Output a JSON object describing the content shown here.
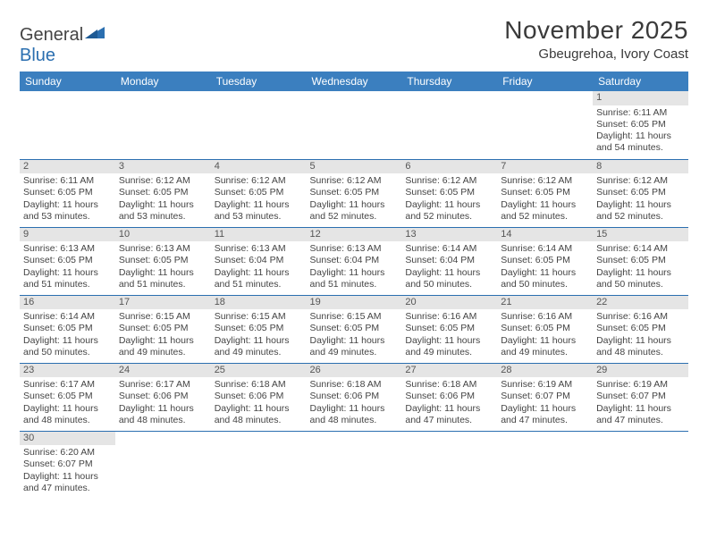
{
  "logo": {
    "word1": "General",
    "word2": "Blue"
  },
  "title": {
    "month": "November 2025",
    "location": "Gbeugrehoa, Ivory Coast"
  },
  "colors": {
    "header_bg": "#3b7fbf",
    "header_fg": "#ffffff",
    "rule": "#2b6fb0",
    "daynum_bg": "#e5e5e5",
    "text": "#444444",
    "logo_blue": "#2b6fb0"
  },
  "table": {
    "columns": [
      "Sunday",
      "Monday",
      "Tuesday",
      "Wednesday",
      "Thursday",
      "Friday",
      "Saturday"
    ],
    "col_width_pct": 14.28,
    "font_size_header": 12,
    "font_size_body": 10.5,
    "weeks": [
      [
        null,
        null,
        null,
        null,
        null,
        null,
        {
          "n": "1",
          "sunrise": "6:11 AM",
          "sunset": "6:05 PM",
          "daylight": "11 hours and 54 minutes."
        }
      ],
      [
        {
          "n": "2",
          "sunrise": "6:11 AM",
          "sunset": "6:05 PM",
          "daylight": "11 hours and 53 minutes."
        },
        {
          "n": "3",
          "sunrise": "6:12 AM",
          "sunset": "6:05 PM",
          "daylight": "11 hours and 53 minutes."
        },
        {
          "n": "4",
          "sunrise": "6:12 AM",
          "sunset": "6:05 PM",
          "daylight": "11 hours and 53 minutes."
        },
        {
          "n": "5",
          "sunrise": "6:12 AM",
          "sunset": "6:05 PM",
          "daylight": "11 hours and 52 minutes."
        },
        {
          "n": "6",
          "sunrise": "6:12 AM",
          "sunset": "6:05 PM",
          "daylight": "11 hours and 52 minutes."
        },
        {
          "n": "7",
          "sunrise": "6:12 AM",
          "sunset": "6:05 PM",
          "daylight": "11 hours and 52 minutes."
        },
        {
          "n": "8",
          "sunrise": "6:12 AM",
          "sunset": "6:05 PM",
          "daylight": "11 hours and 52 minutes."
        }
      ],
      [
        {
          "n": "9",
          "sunrise": "6:13 AM",
          "sunset": "6:05 PM",
          "daylight": "11 hours and 51 minutes."
        },
        {
          "n": "10",
          "sunrise": "6:13 AM",
          "sunset": "6:05 PM",
          "daylight": "11 hours and 51 minutes."
        },
        {
          "n": "11",
          "sunrise": "6:13 AM",
          "sunset": "6:04 PM",
          "daylight": "11 hours and 51 minutes."
        },
        {
          "n": "12",
          "sunrise": "6:13 AM",
          "sunset": "6:04 PM",
          "daylight": "11 hours and 51 minutes."
        },
        {
          "n": "13",
          "sunrise": "6:14 AM",
          "sunset": "6:04 PM",
          "daylight": "11 hours and 50 minutes."
        },
        {
          "n": "14",
          "sunrise": "6:14 AM",
          "sunset": "6:05 PM",
          "daylight": "11 hours and 50 minutes."
        },
        {
          "n": "15",
          "sunrise": "6:14 AM",
          "sunset": "6:05 PM",
          "daylight": "11 hours and 50 minutes."
        }
      ],
      [
        {
          "n": "16",
          "sunrise": "6:14 AM",
          "sunset": "6:05 PM",
          "daylight": "11 hours and 50 minutes."
        },
        {
          "n": "17",
          "sunrise": "6:15 AM",
          "sunset": "6:05 PM",
          "daylight": "11 hours and 49 minutes."
        },
        {
          "n": "18",
          "sunrise": "6:15 AM",
          "sunset": "6:05 PM",
          "daylight": "11 hours and 49 minutes."
        },
        {
          "n": "19",
          "sunrise": "6:15 AM",
          "sunset": "6:05 PM",
          "daylight": "11 hours and 49 minutes."
        },
        {
          "n": "20",
          "sunrise": "6:16 AM",
          "sunset": "6:05 PM",
          "daylight": "11 hours and 49 minutes."
        },
        {
          "n": "21",
          "sunrise": "6:16 AM",
          "sunset": "6:05 PM",
          "daylight": "11 hours and 49 minutes."
        },
        {
          "n": "22",
          "sunrise": "6:16 AM",
          "sunset": "6:05 PM",
          "daylight": "11 hours and 48 minutes."
        }
      ],
      [
        {
          "n": "23",
          "sunrise": "6:17 AM",
          "sunset": "6:05 PM",
          "daylight": "11 hours and 48 minutes."
        },
        {
          "n": "24",
          "sunrise": "6:17 AM",
          "sunset": "6:06 PM",
          "daylight": "11 hours and 48 minutes."
        },
        {
          "n": "25",
          "sunrise": "6:18 AM",
          "sunset": "6:06 PM",
          "daylight": "11 hours and 48 minutes."
        },
        {
          "n": "26",
          "sunrise": "6:18 AM",
          "sunset": "6:06 PM",
          "daylight": "11 hours and 48 minutes."
        },
        {
          "n": "27",
          "sunrise": "6:18 AM",
          "sunset": "6:06 PM",
          "daylight": "11 hours and 47 minutes."
        },
        {
          "n": "28",
          "sunrise": "6:19 AM",
          "sunset": "6:07 PM",
          "daylight": "11 hours and 47 minutes."
        },
        {
          "n": "29",
          "sunrise": "6:19 AM",
          "sunset": "6:07 PM",
          "daylight": "11 hours and 47 minutes."
        }
      ],
      [
        {
          "n": "30",
          "sunrise": "6:20 AM",
          "sunset": "6:07 PM",
          "daylight": "11 hours and 47 minutes."
        },
        null,
        null,
        null,
        null,
        null,
        null
      ]
    ],
    "labels": {
      "sunrise": "Sunrise: ",
      "sunset": "Sunset: ",
      "daylight": "Daylight: "
    }
  }
}
